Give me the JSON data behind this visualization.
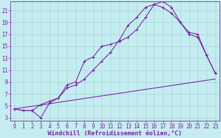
{
  "xlabel": "Windchill (Refroidissement éolien,°C)",
  "bg_color": "#c5edf0",
  "grid_color": "#a8d8dc",
  "line_color": "#7b1fa2",
  "xlim": [
    -0.5,
    23.5
  ],
  "ylim": [
    2.5,
    22.5
  ],
  "xticks": [
    0,
    1,
    2,
    3,
    4,
    5,
    6,
    7,
    8,
    9,
    10,
    11,
    12,
    13,
    14,
    15,
    16,
    17,
    18,
    19,
    20,
    21,
    22,
    23
  ],
  "yticks": [
    3,
    5,
    7,
    9,
    11,
    13,
    15,
    17,
    19,
    21
  ],
  "curve1_x": [
    0,
    1,
    2,
    3,
    4,
    5,
    6,
    7,
    8,
    9,
    10,
    11,
    12,
    13,
    14,
    15,
    16,
    17,
    18,
    19,
    20,
    21,
    22,
    23
  ],
  "curve1_y": [
    4.5,
    4.2,
    4.2,
    3.0,
    5.5,
    6.3,
    8.5,
    9.0,
    12.5,
    13.2,
    15.0,
    15.3,
    15.8,
    16.5,
    17.8,
    19.8,
    22.0,
    22.5,
    21.5,
    19.0,
    17.3,
    17.0,
    13.5,
    10.5
  ],
  "curve2_x": [
    0,
    1,
    2,
    3,
    4,
    5,
    6,
    7,
    8,
    9,
    10,
    11,
    12,
    13,
    14,
    15,
    16,
    17,
    18,
    19,
    20,
    21,
    22,
    23
  ],
  "curve2_y": [
    4.5,
    4.2,
    4.2,
    5.2,
    5.8,
    6.3,
    8.0,
    8.5,
    9.5,
    11.0,
    12.5,
    14.0,
    16.0,
    18.5,
    19.8,
    21.5,
    22.0,
    21.5,
    20.5,
    19.0,
    17.0,
    16.5,
    13.5,
    10.5
  ],
  "curve3_x": [
    0,
    23
  ],
  "curve3_y": [
    4.5,
    9.5
  ],
  "tick_fontsize": 5.5,
  "xlabel_fontsize": 6.2
}
